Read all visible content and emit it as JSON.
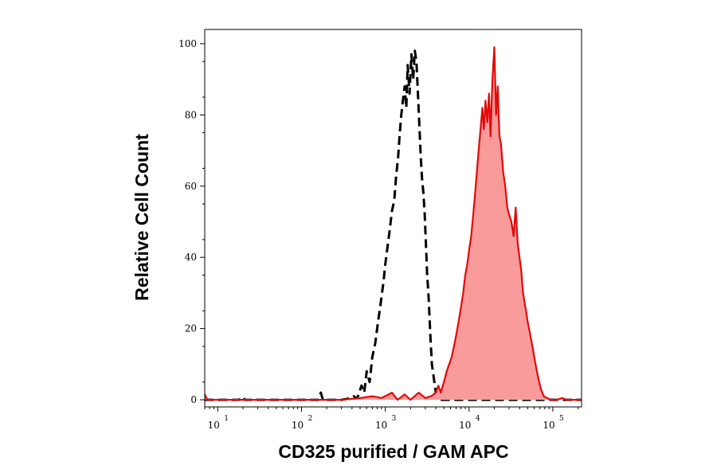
{
  "chart_data": {
    "type": "area",
    "xlabel": "CD325 purified / GAM APC",
    "ylabel": "Relative Cell Count",
    "x_scale": "log",
    "xlim": [
      7,
      220000
    ],
    "ylim": [
      -2,
      104
    ],
    "y_ticks": [
      {
        "value": 0,
        "label": "0"
      },
      {
        "value": 20,
        "label": "20"
      },
      {
        "value": 40,
        "label": "40"
      },
      {
        "value": 60,
        "label": "60"
      },
      {
        "value": 80,
        "label": "80"
      },
      {
        "value": 100,
        "label": "100"
      }
    ],
    "x_ticks": [
      {
        "value": 10,
        "base": "10",
        "exp": "1"
      },
      {
        "value": 100,
        "base": "10",
        "exp": "2"
      },
      {
        "value": 1000,
        "base": "10",
        "exp": "3"
      },
      {
        "value": 10000,
        "base": "10",
        "exp": "4"
      },
      {
        "value": 100000,
        "base": "10",
        "exp": "5"
      }
    ],
    "grid": false,
    "series": [
      {
        "style": "dashed-line",
        "color": "#000000",
        "points": [
          [
            7,
            0
          ],
          [
            18,
            0
          ],
          [
            20,
            0.8
          ],
          [
            21,
            0
          ],
          [
            100,
            0
          ],
          [
            160,
            0
          ],
          [
            170,
            2
          ],
          [
            180,
            0
          ],
          [
            300,
            0
          ],
          [
            400,
            0.5
          ],
          [
            420,
            1
          ],
          [
            460,
            0.3
          ],
          [
            520,
            4
          ],
          [
            560,
            2
          ],
          [
            600,
            8
          ],
          [
            650,
            5
          ],
          [
            700,
            12
          ],
          [
            760,
            16
          ],
          [
            820,
            22
          ],
          [
            880,
            27
          ],
          [
            950,
            33
          ],
          [
            1000,
            38
          ],
          [
            1050,
            42
          ],
          [
            1120,
            47
          ],
          [
            1200,
            53
          ],
          [
            1280,
            56
          ],
          [
            1350,
            63
          ],
          [
            1420,
            68
          ],
          [
            1480,
            74
          ],
          [
            1550,
            80
          ],
          [
            1620,
            84
          ],
          [
            1700,
            88
          ],
          [
            1780,
            82
          ],
          [
            1850,
            94
          ],
          [
            1950,
            86
          ],
          [
            2050,
            97
          ],
          [
            2150,
            90
          ],
          [
            2250,
            98
          ],
          [
            2350,
            95
          ],
          [
            2450,
            86
          ],
          [
            2550,
            77
          ],
          [
            2650,
            68
          ],
          [
            2750,
            62
          ],
          [
            2850,
            58
          ],
          [
            2950,
            52
          ],
          [
            3050,
            44
          ],
          [
            3150,
            36
          ],
          [
            3300,
            28
          ],
          [
            3450,
            18
          ],
          [
            3600,
            10
          ],
          [
            3800,
            6
          ],
          [
            4000,
            2
          ],
          [
            4300,
            1
          ],
          [
            4700,
            0
          ],
          [
            220000,
            0
          ]
        ]
      },
      {
        "style": "filled-line",
        "color": "#e10a0a",
        "fill": "#f99b9b",
        "points": [
          [
            7,
            1.5
          ],
          [
            7.5,
            0
          ],
          [
            100,
            0
          ],
          [
            300,
            0
          ],
          [
            500,
            0.5
          ],
          [
            700,
            1
          ],
          [
            900,
            0.5
          ],
          [
            1200,
            2
          ],
          [
            1400,
            0
          ],
          [
            1700,
            1.5
          ],
          [
            2000,
            0
          ],
          [
            2500,
            2
          ],
          [
            3000,
            0.5
          ],
          [
            3500,
            1
          ],
          [
            4000,
            2
          ],
          [
            4300,
            4
          ],
          [
            4600,
            2
          ],
          [
            5000,
            5
          ],
          [
            5400,
            8
          ],
          [
            5800,
            10
          ],
          [
            6200,
            12
          ],
          [
            6600,
            15
          ],
          [
            7000,
            18
          ],
          [
            7500,
            22
          ],
          [
            8000,
            26
          ],
          [
            8500,
            30
          ],
          [
            9000,
            35
          ],
          [
            9500,
            38
          ],
          [
            10000,
            42
          ],
          [
            10600,
            46
          ],
          [
            11200,
            52
          ],
          [
            11800,
            58
          ],
          [
            12400,
            64
          ],
          [
            13000,
            70
          ],
          [
            13700,
            76
          ],
          [
            14400,
            82
          ],
          [
            15000,
            76
          ],
          [
            15700,
            84
          ],
          [
            16500,
            78
          ],
          [
            17300,
            86
          ],
          [
            18000,
            74
          ],
          [
            19000,
            90
          ],
          [
            20000,
            99
          ],
          [
            21000,
            80
          ],
          [
            22000,
            88
          ],
          [
            23000,
            74
          ],
          [
            24000,
            72
          ],
          [
            25500,
            64
          ],
          [
            27000,
            60
          ],
          [
            28500,
            54
          ],
          [
            30000,
            52
          ],
          [
            32000,
            50
          ],
          [
            34000,
            46
          ],
          [
            36000,
            54
          ],
          [
            38000,
            44
          ],
          [
            40000,
            40
          ],
          [
            42000,
            36
          ],
          [
            44000,
            30
          ],
          [
            47000,
            26
          ],
          [
            50000,
            22
          ],
          [
            54000,
            18
          ],
          [
            58000,
            14
          ],
          [
            62000,
            10
          ],
          [
            67000,
            6
          ],
          [
            72000,
            3
          ],
          [
            78000,
            1
          ],
          [
            85000,
            0.5
          ],
          [
            95000,
            0
          ],
          [
            110000,
            0
          ],
          [
            130000,
            0.5
          ],
          [
            145000,
            0
          ],
          [
            220000,
            0
          ]
        ]
      }
    ]
  }
}
